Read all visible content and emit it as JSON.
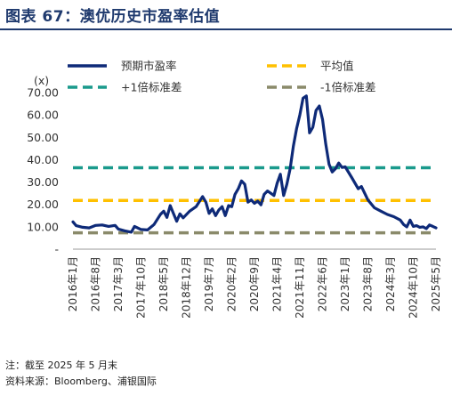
{
  "header": {
    "title": "图表 67：澳优历史市盈率估值"
  },
  "notes": {
    "note": "注：截至 2025 年 5 月末",
    "source": "资料来源：Bloomberg、浦银国际"
  },
  "chart_data": {
    "type": "line",
    "title": "",
    "unit_label": "(x)",
    "xlabel": "",
    "ylabel": "",
    "ylim": [
      0,
      70
    ],
    "y_ticks": [
      {
        "value": 0,
        "label": "-"
      },
      {
        "value": 10,
        "label": "10.00"
      },
      {
        "value": 20,
        "label": "20.00"
      },
      {
        "value": 30,
        "label": "30.00"
      },
      {
        "value": 40,
        "label": "40.00"
      },
      {
        "value": 50,
        "label": "50.00"
      },
      {
        "value": 60,
        "label": "60.00"
      },
      {
        "value": 70,
        "label": "70.00"
      }
    ],
    "grid": false,
    "legend_position": "top",
    "x_tick_labels": [
      "2016年1月",
      "2016年8月",
      "2017年3月",
      "2017年10月",
      "2018年5月",
      "2018年12月",
      "2019年7月",
      "2020年2月",
      "2020年9月",
      "2021年4月",
      "2021年11月",
      "2022年6月",
      "2023年1月",
      "2023年8月",
      "2024年3月",
      "2024年10月",
      "2025年5月"
    ],
    "x_start": "2016-01",
    "x_end": "2025-05",
    "series": [
      {
        "name": "预期市盈率",
        "color": "#0E2A78",
        "style": "solid",
        "points": [
          [
            "2016-01",
            12.2
          ],
          [
            "2016-02",
            10.5
          ],
          [
            "2016-04",
            9.8
          ],
          [
            "2016-06",
            9.5
          ],
          [
            "2016-08",
            10.6
          ],
          [
            "2016-10",
            10.8
          ],
          [
            "2016-12",
            10.2
          ],
          [
            "2017-02",
            10.6
          ],
          [
            "2017-03",
            9.0
          ],
          [
            "2017-05",
            8.2
          ],
          [
            "2017-07",
            7.6
          ],
          [
            "2017-08",
            10.2
          ],
          [
            "2017-10",
            8.8
          ],
          [
            "2017-12",
            8.6
          ],
          [
            "2018-02",
            11.0
          ],
          [
            "2018-04",
            15.6
          ],
          [
            "2018-05",
            17.0
          ],
          [
            "2018-06",
            14.2
          ],
          [
            "2018-07",
            19.5
          ],
          [
            "2018-08",
            16.0
          ],
          [
            "2018-09",
            12.5
          ],
          [
            "2018-10",
            15.8
          ],
          [
            "2018-11",
            14.0
          ],
          [
            "2019-01",
            17.0
          ],
          [
            "2019-03",
            19.0
          ],
          [
            "2019-05",
            23.5
          ],
          [
            "2019-06",
            21.0
          ],
          [
            "2019-07",
            16.0
          ],
          [
            "2019-08",
            18.0
          ],
          [
            "2019-09",
            15.0
          ],
          [
            "2019-10",
            17.5
          ],
          [
            "2019-11",
            19.0
          ],
          [
            "2019-12",
            15.0
          ],
          [
            "2020-01",
            19.5
          ],
          [
            "2020-02",
            19.0
          ],
          [
            "2020-03",
            24.5
          ],
          [
            "2020-04",
            27.0
          ],
          [
            "2020-05",
            30.5
          ],
          [
            "2020-06",
            29.0
          ],
          [
            "2020-07",
            21.0
          ],
          [
            "2020-08",
            22.0
          ],
          [
            "2020-09",
            20.5
          ],
          [
            "2020-10",
            21.5
          ],
          [
            "2020-11",
            19.8
          ],
          [
            "2020-12",
            24.5
          ],
          [
            "2021-01",
            26.0
          ],
          [
            "2021-02",
            25.0
          ],
          [
            "2021-03",
            24.0
          ],
          [
            "2021-04",
            29.5
          ],
          [
            "2021-05",
            33.5
          ],
          [
            "2021-06",
            24.0
          ],
          [
            "2021-07",
            29.0
          ],
          [
            "2021-08",
            36.0
          ],
          [
            "2021-09",
            46.0
          ],
          [
            "2021-10",
            54.0
          ],
          [
            "2021-11",
            60.0
          ],
          [
            "2021-12",
            67.5
          ],
          [
            "2022-01",
            68.5
          ],
          [
            "2022-02",
            52.0
          ],
          [
            "2022-03",
            54.5
          ],
          [
            "2022-04",
            62.0
          ],
          [
            "2022-05",
            64.0
          ],
          [
            "2022-06",
            58.0
          ],
          [
            "2022-07",
            47.0
          ],
          [
            "2022-08",
            38.0
          ],
          [
            "2022-09",
            34.5
          ],
          [
            "2022-10",
            36.0
          ],
          [
            "2022-11",
            38.5
          ],
          [
            "2022-12",
            36.5
          ],
          [
            "2023-01",
            36.8
          ],
          [
            "2023-03",
            32.0
          ],
          [
            "2023-05",
            27.0
          ],
          [
            "2023-06",
            28.0
          ],
          [
            "2023-08",
            22.0
          ],
          [
            "2023-10",
            18.5
          ],
          [
            "2023-12",
            17.0
          ],
          [
            "2024-02",
            15.5
          ],
          [
            "2024-04",
            14.5
          ],
          [
            "2024-06",
            13.0
          ],
          [
            "2024-07",
            11.0
          ],
          [
            "2024-08",
            10.0
          ],
          [
            "2024-09",
            13.0
          ],
          [
            "2024-10",
            10.2
          ],
          [
            "2024-11",
            10.5
          ],
          [
            "2024-12",
            9.8
          ],
          [
            "2025-01",
            10.0
          ],
          [
            "2025-02",
            9.2
          ],
          [
            "2025-03",
            10.8
          ],
          [
            "2025-04",
            10.2
          ],
          [
            "2025-05",
            9.5
          ]
        ]
      },
      {
        "name": "平均值",
        "color": "#FFC000",
        "style": "dashed",
        "value": 21.8
      },
      {
        "name": "+1倍标准差",
        "color": "#1A9A8C",
        "style": "dashed",
        "value": 36.4
      },
      {
        "name": "-1倍标准差",
        "color": "#8A8A6A",
        "style": "dashed",
        "value": 7.3
      }
    ]
  }
}
